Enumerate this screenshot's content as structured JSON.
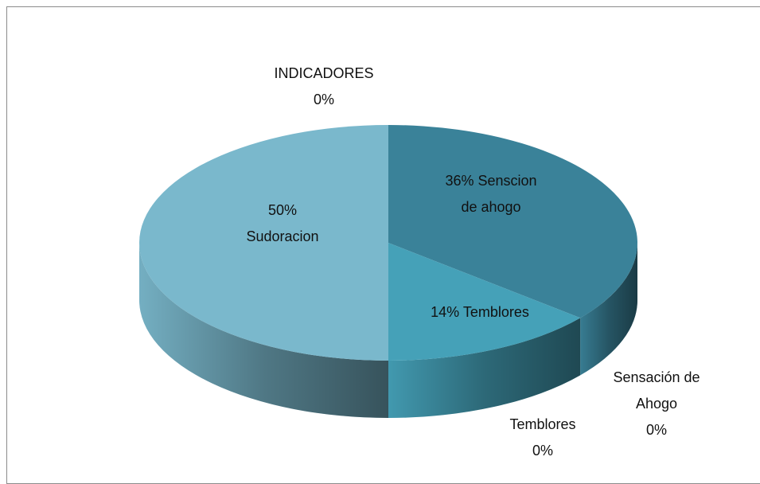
{
  "chart_data": {
    "type": "pie",
    "three_d": true,
    "categories": [
      "INDICADORES",
      "Senscion de ahogo",
      "Temblores",
      "Sudoracion",
      "Sensación de Ahogo",
      "Temblores"
    ],
    "values": [
      0,
      36,
      14,
      50,
      0,
      0
    ],
    "value_labels": [
      "0%",
      "36%",
      "14%",
      "50%",
      "0%",
      "0%"
    ],
    "colors": [
      "#4f81bd",
      "#3a8299",
      "#45a1b8",
      "#7ab8cc",
      "#2f6f80",
      "#3f92a8"
    ]
  }
}
